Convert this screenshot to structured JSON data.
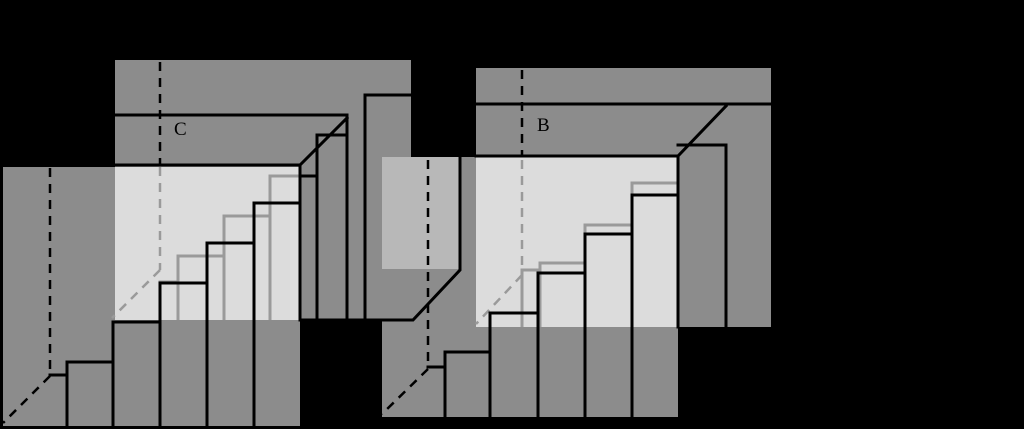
{
  "labels": {
    "left_box": "C",
    "right_box": "B"
  },
  "colors": {
    "background": "#000000",
    "panel": "#8c8c8c",
    "overlap": "#dcdcdc",
    "ghost": "#9a9a9a"
  }
}
